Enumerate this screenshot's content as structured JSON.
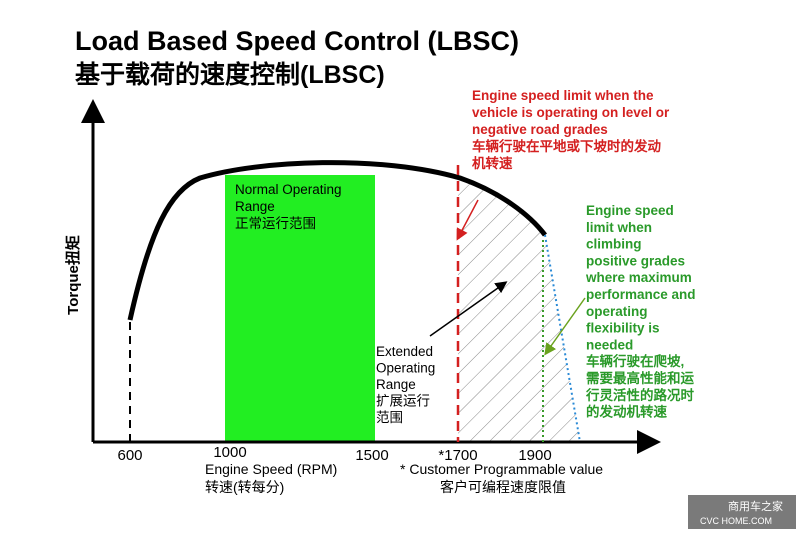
{
  "title": "Load Based Speed Control (LBSC)",
  "subtitle": "基于载荷的速度控制(LBSC)",
  "y_axis_label": "Torque扭矩",
  "x_axis": {
    "ticks": [
      "600",
      "1000",
      "1500",
      "*1700",
      "1900"
    ],
    "label": "Engine Speed (RPM)",
    "label_cn": "转速(转每分)",
    "note": "* Customer Programmable value",
    "note_cn": "客户可编程速度限值"
  },
  "regions": {
    "normal": [
      "Normal Operating",
      "Range",
      "正常运行范围"
    ],
    "extended": [
      "Extended",
      "Operating",
      "Range",
      "扩展运行",
      "范围"
    ]
  },
  "annotations": {
    "red": [
      "Engine speed  limit  when the",
      "vehicle is operating on level  or",
      "negative road  grades",
      "车辆行驶在平地或下坡时的发动",
      "机转速"
    ],
    "green": [
      "Engine speed",
      "limit  when",
      "climbing",
      "positive grades",
      "where maximum",
      "performance and",
      "operating",
      "flexibility  is",
      "needed",
      "车辆行驶在爬坡,",
      "需要最高性能和运",
      "行灵活性的路况时",
      "的发动机转速"
    ]
  },
  "watermark": {
    "name": "商用车之家",
    "site": "CVC HOME.COM"
  }
}
